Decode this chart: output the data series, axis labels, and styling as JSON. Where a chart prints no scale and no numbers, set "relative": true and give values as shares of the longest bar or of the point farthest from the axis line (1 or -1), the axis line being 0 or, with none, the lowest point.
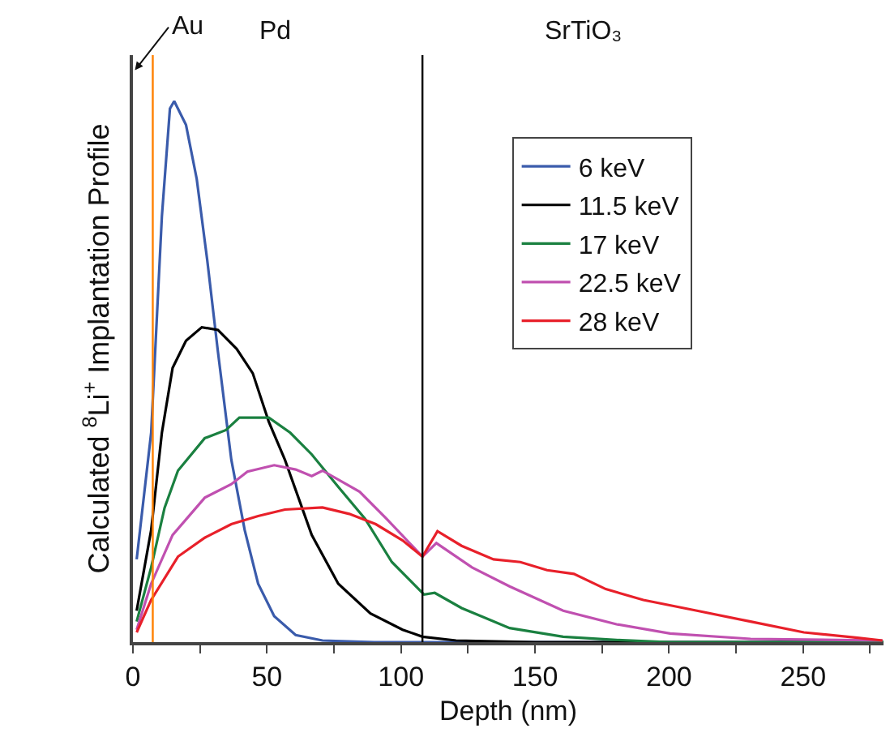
{
  "chart_data": {
    "type": "line",
    "relative": true,
    "xlabel": "Depth (nm)",
    "ylabel": "Calculated $^{8}$Li$^{+}$ Implantation Profile",
    "xlim": [
      0,
      280
    ],
    "xticks": [
      0,
      {
        "value": 25,
        "label": null
      },
      50,
      {
        "value": 75,
        "label": null
      },
      100,
      {
        "value": 125,
        "label": null
      },
      150,
      {
        "value": 175,
        "label": null
      },
      200,
      {
        "value": 225,
        "label": null
      },
      250,
      {
        "value": 275,
        "label": null
      }
    ],
    "legend": "top right",
    "marker": "none",
    "line_style": "solid",
    "tick_labels": "x",
    "annotations": [
      "Pd",
      "SrTiO₃"
    ],
    "ref_lines": [
      {
        "axis": "x",
        "value": 7.4,
        "label": "Au",
        "color": "#ff8000"
      },
      {
        "axis": "x",
        "value": 108,
        "color": "#000000"
      }
    ],
    "series": [
      {
        "name": "6 keV",
        "color": "#3a5bab",
        "x": [
          1.4,
          6.8,
          10.8,
          13.8,
          15.4,
          19.8,
          23.8,
          27.7,
          31.7,
          36.7,
          41.7,
          46.7,
          52.7,
          60.7,
          70.7,
          90,
          150,
          280
        ],
        "values": [
          0.153,
          0.387,
          0.787,
          0.986,
          1.0,
          0.956,
          0.856,
          0.707,
          0.537,
          0.337,
          0.207,
          0.108,
          0.048,
          0.013,
          0.003,
          0,
          0,
          0
        ]
      },
      {
        "name": "11.5 keV",
        "color": "#000000",
        "x": [
          1.4,
          6.8,
          10.8,
          14.8,
          19.8,
          25.7,
          31.7,
          38.7,
          44.7,
          50.7,
          56.7,
          66.7,
          76.6,
          88.6,
          100.6,
          108,
          120.5,
          150,
          280
        ],
        "values": [
          0.058,
          0.207,
          0.387,
          0.507,
          0.557,
          0.582,
          0.577,
          0.542,
          0.497,
          0.407,
          0.337,
          0.198,
          0.108,
          0.053,
          0.023,
          0.01,
          0.003,
          0,
          0
        ]
      },
      {
        "name": "17 keV",
        "color": "#1a8040",
        "x": [
          1.4,
          6.8,
          11.8,
          16.8,
          26.8,
          34.7,
          39.7,
          50.7,
          58.7,
          66.7,
          76.6,
          86.6,
          96.6,
          106.6,
          108.6,
          112.6,
          122.6,
          140.5,
          160.5,
          180.4,
          200,
          280
        ],
        "values": [
          0.038,
          0.138,
          0.248,
          0.317,
          0.377,
          0.392,
          0.415,
          0.415,
          0.387,
          0.347,
          0.287,
          0.228,
          0.148,
          0.098,
          0.088,
          0.091,
          0.063,
          0.026,
          0.01,
          0.004,
          0,
          0
        ]
      },
      {
        "name": "22.5 keV",
        "color": "#c050b0",
        "x": [
          1.4,
          6.8,
          14.8,
          26.8,
          36.7,
          42.7,
          52.7,
          60.7,
          66.7,
          70.7,
          84.6,
          94.6,
          108,
          113.2,
          126.5,
          140.5,
          160.5,
          180.4,
          200.4,
          230.4,
          279.6
        ],
        "values": [
          0.023,
          0.108,
          0.198,
          0.267,
          0.292,
          0.315,
          0.327,
          0.319,
          0.307,
          0.317,
          0.278,
          0.228,
          0.158,
          0.183,
          0.138,
          0.103,
          0.058,
          0.033,
          0.016,
          0.006,
          0.003
        ]
      },
      {
        "name": "28 keV",
        "color": "#e8202a",
        "x": [
          1.4,
          6.8,
          16.8,
          26.8,
          36.7,
          46.7,
          56.7,
          70.7,
          80.7,
          90.6,
          100.6,
          108,
          113.6,
          122.6,
          134.5,
          144.5,
          154.5,
          164.5,
          176.4,
          190.4,
          210.4,
          230.4,
          250.3,
          270.3,
          279.6
        ],
        "values": [
          0.018,
          0.078,
          0.158,
          0.193,
          0.218,
          0.233,
          0.245,
          0.249,
          0.237,
          0.218,
          0.188,
          0.158,
          0.205,
          0.178,
          0.153,
          0.148,
          0.133,
          0.126,
          0.098,
          0.078,
          0.058,
          0.038,
          0.018,
          0.008,
          0.003
        ]
      }
    ]
  }
}
